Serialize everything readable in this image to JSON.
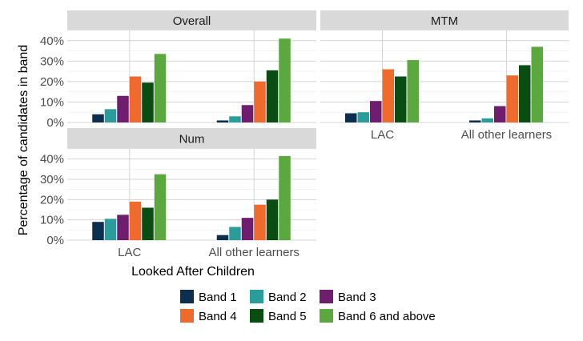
{
  "chart_data": {
    "type": "bar",
    "xlabel": "Looked After Children",
    "ylabel": "Percentage of candidates in band",
    "ylim": [
      0,
      45
    ],
    "y_ticks": [
      0,
      10,
      20,
      30,
      40
    ],
    "y_tick_labels": [
      "0%",
      "10%",
      "20%",
      "30%",
      "40%"
    ],
    "categories": [
      "LAC",
      "All other learners"
    ],
    "grid": true,
    "legend_position": "bottom",
    "series": [
      {
        "name": "Band 1",
        "color": "#0d2f4f"
      },
      {
        "name": "Band 2",
        "color": "#2a9d9a"
      },
      {
        "name": "Band 3",
        "color": "#6f1e6e"
      },
      {
        "name": "Band 4",
        "color": "#ef6b2d"
      },
      {
        "name": "Band 5",
        "color": "#0a4d13"
      },
      {
        "name": "Band 6 and above",
        "color": "#5aa83e"
      }
    ],
    "panels": [
      {
        "title": "Overall",
        "values": [
          [
            4,
            6.5,
            13,
            22.5,
            19.5,
            33.5
          ],
          [
            1,
            3,
            8.5,
            20,
            25.5,
            41
          ]
        ]
      },
      {
        "title": "MTM",
        "values": [
          [
            4.5,
            5,
            10.5,
            26,
            22.5,
            30.5
          ],
          [
            1,
            2,
            8,
            23,
            28,
            37
          ]
        ]
      },
      {
        "title": "Num",
        "values": [
          [
            9,
            10.5,
            12.5,
            19,
            16,
            32.5
          ],
          [
            2.5,
            6.5,
            11,
            17.5,
            20,
            41.5
          ]
        ]
      }
    ]
  }
}
